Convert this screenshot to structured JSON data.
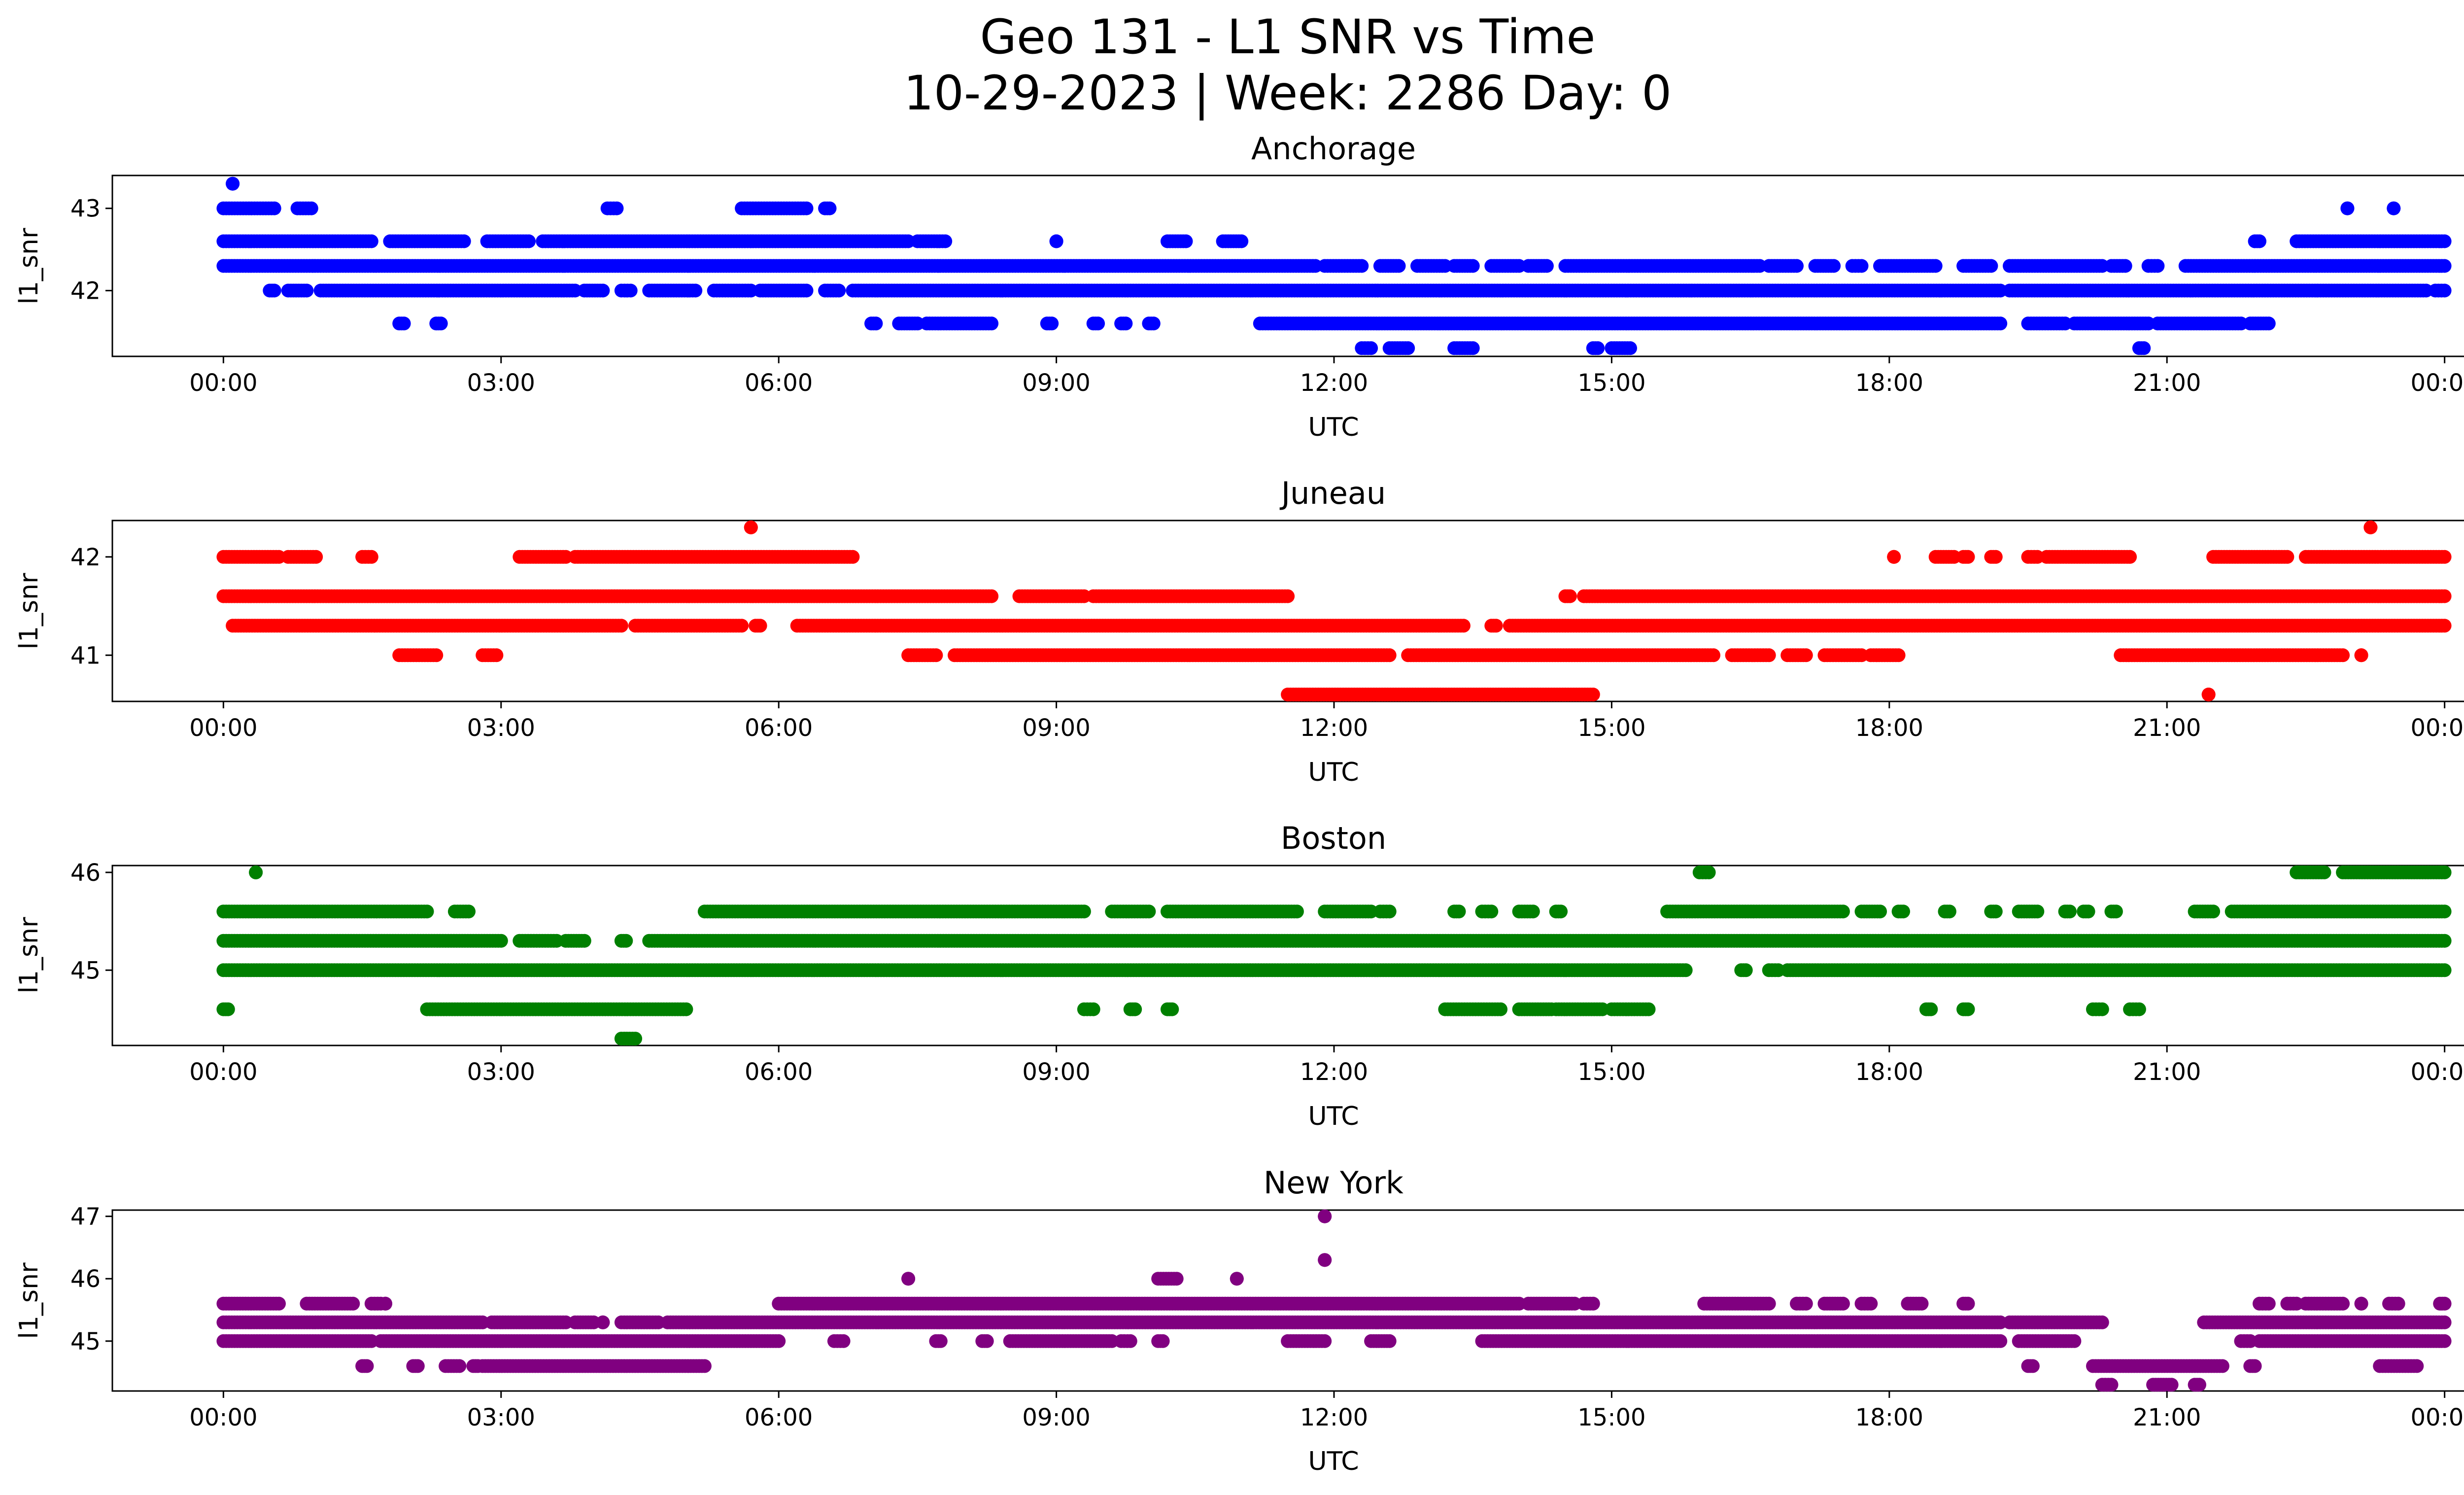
{
  "figure": {
    "title_line1": "Geo 131 - L1 SNR vs Time",
    "title_line2": "10-29-2023 | Week: 2286 Day: 0"
  },
  "chart_data": [
    {
      "type": "scatter",
      "title": "Anchorage",
      "xlabel": "UTC",
      "ylabel": "l1_snr",
      "xlim": [
        -1.2,
        25.2
      ],
      "ylim": [
        41.2,
        43.4
      ],
      "xticks": [
        0,
        3,
        6,
        9,
        12,
        15,
        18,
        21,
        24
      ],
      "xtick_labels": [
        "00:00",
        "03:00",
        "06:00",
        "09:00",
        "12:00",
        "15:00",
        "18:00",
        "21:00",
        "00:00"
      ],
      "yticks": [
        42,
        43
      ],
      "color": "#0000ff",
      "bands": [
        {
          "y": 43.0,
          "segments": [
            [
              0.0,
              0.55
            ],
            [
              0.8,
              0.95
            ],
            [
              4.15,
              4.25
            ],
            [
              5.6,
              6.3
            ],
            [
              6.5,
              6.55
            ],
            [
              22.95,
              22.95
            ],
            [
              23.45,
              23.45
            ]
          ]
        },
        {
          "y": 42.6,
          "segments": [
            [
              0.0,
              1.6
            ],
            [
              1.8,
              2.6
            ],
            [
              2.85,
              3.3
            ],
            [
              3.45,
              7.4
            ],
            [
              7.5,
              7.8
            ],
            [
              9.0,
              9.0
            ],
            [
              10.2,
              10.4
            ],
            [
              10.8,
              11.0
            ],
            [
              21.95,
              22.0
            ],
            [
              22.4,
              24.0
            ]
          ]
        },
        {
          "y": 42.3,
          "segments": [
            [
              0.0,
              11.8
            ],
            [
              11.9,
              12.3
            ],
            [
              12.5,
              12.7
            ],
            [
              12.9,
              13.2
            ],
            [
              13.3,
              13.5
            ],
            [
              13.7,
              14.0
            ],
            [
              14.1,
              14.3
            ],
            [
              14.5,
              16.6
            ],
            [
              16.7,
              17.0
            ],
            [
              17.2,
              17.4
            ],
            [
              17.6,
              17.7
            ],
            [
              17.9,
              18.5
            ],
            [
              18.8,
              19.1
            ],
            [
              19.3,
              20.3
            ],
            [
              20.4,
              20.55
            ],
            [
              20.8,
              20.9
            ],
            [
              21.2,
              24.0
            ]
          ]
        },
        {
          "y": 42.0,
          "segments": [
            [
              0.5,
              0.55
            ],
            [
              0.7,
              0.9
            ],
            [
              1.05,
              3.8
            ],
            [
              3.9,
              4.1
            ],
            [
              4.3,
              4.4
            ],
            [
              4.6,
              5.1
            ],
            [
              5.3,
              5.7
            ],
            [
              5.8,
              6.3
            ],
            [
              6.5,
              6.65
            ],
            [
              6.8,
              19.2
            ],
            [
              19.3,
              23.8
            ],
            [
              23.9,
              24.0
            ]
          ]
        },
        {
          "y": 41.6,
          "segments": [
            [
              1.9,
              1.95
            ],
            [
              2.3,
              2.35
            ],
            [
              7.0,
              7.05
            ],
            [
              7.3,
              7.5
            ],
            [
              7.6,
              8.3
            ],
            [
              8.9,
              8.95
            ],
            [
              9.4,
              9.45
            ],
            [
              9.7,
              9.75
            ],
            [
              10.0,
              10.05
            ],
            [
              11.2,
              19.2
            ],
            [
              19.5,
              19.9
            ],
            [
              20.0,
              20.8
            ],
            [
              20.9,
              21.8
            ],
            [
              21.9,
              22.1
            ]
          ]
        },
        {
          "y": 41.3,
          "segments": [
            [
              12.3,
              12.4
            ],
            [
              12.6,
              12.8
            ],
            [
              13.3,
              13.5
            ],
            [
              14.8,
              14.85
            ],
            [
              15.0,
              15.2
            ],
            [
              20.7,
              20.75
            ]
          ]
        },
        {
          "y": 43.3,
          "segments": [
            [
              0.1,
              0.1
            ]
          ]
        }
      ]
    },
    {
      "type": "scatter",
      "title": "Juneau",
      "xlabel": "UTC",
      "ylabel": "l1_snr",
      "xlim": [
        -1.2,
        25.2
      ],
      "ylim": [
        40.53,
        42.37
      ],
      "xticks": [
        0,
        3,
        6,
        9,
        12,
        15,
        18,
        21,
        24
      ],
      "xtick_labels": [
        "00:00",
        "03:00",
        "06:00",
        "09:00",
        "12:00",
        "15:00",
        "18:00",
        "21:00",
        "00:00"
      ],
      "yticks": [
        41,
        42
      ],
      "color": "#ff0000",
      "bands": [
        {
          "y": 42.0,
          "segments": [
            [
              0.0,
              0.6
            ],
            [
              0.7,
              1.0
            ],
            [
              1.5,
              1.6
            ],
            [
              3.2,
              3.7
            ],
            [
              3.8,
              6.8
            ],
            [
              18.05,
              18.05
            ],
            [
              18.5,
              18.7
            ],
            [
              18.8,
              18.85
            ],
            [
              19.1,
              19.15
            ],
            [
              19.5,
              19.6
            ],
            [
              19.7,
              20.6
            ],
            [
              21.5,
              22.3
            ],
            [
              22.5,
              24.0
            ]
          ]
        },
        {
          "y": 41.6,
          "segments": [
            [
              0.0,
              8.3
            ],
            [
              8.6,
              9.3
            ],
            [
              9.4,
              11.5
            ],
            [
              14.5,
              14.55
            ],
            [
              14.7,
              24.0
            ]
          ]
        },
        {
          "y": 41.3,
          "segments": [
            [
              0.1,
              4.3
            ],
            [
              4.45,
              5.6
            ],
            [
              5.75,
              5.8
            ],
            [
              6.2,
              13.4
            ],
            [
              13.7,
              13.75
            ],
            [
              13.9,
              24.0
            ]
          ]
        },
        {
          "y": 41.0,
          "segments": [
            [
              1.9,
              2.3
            ],
            [
              2.8,
              2.95
            ],
            [
              7.4,
              7.7
            ],
            [
              7.9,
              12.6
            ],
            [
              12.8,
              16.1
            ],
            [
              16.3,
              16.7
            ],
            [
              16.9,
              17.1
            ],
            [
              17.3,
              17.7
            ],
            [
              17.8,
              18.1
            ],
            [
              20.5,
              22.9
            ],
            [
              23.1,
              23.1
            ]
          ]
        },
        {
          "y": 40.6,
          "segments": [
            [
              11.5,
              14.8
            ],
            [
              21.45,
              21.45
            ]
          ]
        },
        {
          "y": 42.3,
          "segments": [
            [
              5.7,
              5.7
            ],
            [
              23.2,
              23.2
            ]
          ]
        }
      ]
    },
    {
      "type": "scatter",
      "title": "Boston",
      "xlabel": "UTC",
      "ylabel": "l1_snr",
      "xlim": [
        -1.2,
        25.2
      ],
      "ylim": [
        44.23,
        46.07
      ],
      "xticks": [
        0,
        3,
        6,
        9,
        12,
        15,
        18,
        21,
        24
      ],
      "xtick_labels": [
        "00:00",
        "03:00",
        "06:00",
        "09:00",
        "12:00",
        "15:00",
        "18:00",
        "21:00",
        "00:00"
      ],
      "yticks": [
        45,
        46
      ],
      "color": "#008000",
      "bands": [
        {
          "y": 46.0,
          "segments": [
            [
              0.35,
              0.35
            ],
            [
              15.95,
              16.05
            ],
            [
              22.4,
              22.7
            ],
            [
              22.9,
              24.0
            ]
          ]
        },
        {
          "y": 45.6,
          "segments": [
            [
              0.0,
              2.2
            ],
            [
              2.5,
              2.65
            ],
            [
              5.2,
              9.3
            ],
            [
              9.6,
              10.0
            ],
            [
              10.2,
              11.6
            ],
            [
              11.9,
              12.4
            ],
            [
              12.5,
              12.6
            ],
            [
              13.3,
              13.35
            ],
            [
              13.6,
              13.7
            ],
            [
              14.0,
              14.15
            ],
            [
              14.4,
              14.45
            ],
            [
              15.6,
              17.5
            ],
            [
              17.7,
              17.9
            ],
            [
              18.1,
              18.15
            ],
            [
              18.6,
              18.65
            ],
            [
              19.1,
              19.15
            ],
            [
              19.4,
              19.6
            ],
            [
              19.9,
              19.95
            ],
            [
              20.1,
              20.15
            ],
            [
              20.4,
              20.45
            ],
            [
              21.3,
              21.5
            ],
            [
              21.7,
              24.0
            ]
          ]
        },
        {
          "y": 45.3,
          "segments": [
            [
              0.0,
              3.0
            ],
            [
              3.2,
              3.6
            ],
            [
              3.7,
              3.9
            ],
            [
              4.3,
              4.35
            ],
            [
              4.6,
              24.0
            ]
          ]
        },
        {
          "y": 45.0,
          "segments": [
            [
              0.0,
              15.8
            ],
            [
              16.4,
              16.45
            ],
            [
              16.7,
              16.8
            ],
            [
              16.9,
              24.0
            ]
          ]
        },
        {
          "y": 44.6,
          "segments": [
            [
              0.0,
              0.05
            ],
            [
              2.2,
              5.0
            ],
            [
              9.3,
              9.4
            ],
            [
              9.8,
              9.85
            ],
            [
              10.2,
              10.25
            ],
            [
              13.2,
              13.8
            ],
            [
              14.0,
              14.35
            ],
            [
              14.4,
              14.9
            ],
            [
              15.0,
              15.4
            ],
            [
              18.4,
              18.45
            ],
            [
              18.8,
              18.85
            ],
            [
              20.2,
              20.3
            ],
            [
              20.6,
              20.7
            ]
          ]
        },
        {
          "y": 44.3,
          "segments": [
            [
              4.3,
              4.45
            ]
          ]
        }
      ]
    },
    {
      "type": "scatter",
      "title": "New York",
      "xlabel": "UTC",
      "ylabel": "l1_snr",
      "xlim": [
        -1.2,
        25.2
      ],
      "ylim": [
        44.2,
        47.1
      ],
      "xticks": [
        0,
        3,
        6,
        9,
        12,
        15,
        18,
        21,
        24
      ],
      "xtick_labels": [
        "00:00",
        "03:00",
        "06:00",
        "09:00",
        "12:00",
        "15:00",
        "18:00",
        "21:00",
        "00:00"
      ],
      "yticks": [
        45,
        46,
        47
      ],
      "color": "#800080",
      "bands": [
        {
          "y": 47.0,
          "segments": [
            [
              11.9,
              11.9
            ]
          ]
        },
        {
          "y": 46.3,
          "segments": [
            [
              11.9,
              11.9
            ]
          ]
        },
        {
          "y": 46.0,
          "segments": [
            [
              7.4,
              7.4
            ],
            [
              10.1,
              10.3
            ],
            [
              10.95,
              10.95
            ]
          ]
        },
        {
          "y": 45.6,
          "segments": [
            [
              0.0,
              0.6
            ],
            [
              0.9,
              1.4
            ],
            [
              1.6,
              1.7
            ],
            [
              1.75,
              1.75
            ],
            [
              6.0,
              14.0
            ],
            [
              14.1,
              14.6
            ],
            [
              14.7,
              14.8
            ],
            [
              16.0,
              16.7
            ],
            [
              17.0,
              17.1
            ],
            [
              17.3,
              17.5
            ],
            [
              17.7,
              17.8
            ],
            [
              18.2,
              18.35
            ],
            [
              18.8,
              18.85
            ],
            [
              22.0,
              22.1
            ],
            [
              22.3,
              22.4
            ],
            [
              22.5,
              22.9
            ],
            [
              23.1,
              23.1
            ],
            [
              23.4,
              23.5
            ],
            [
              23.95,
              24.0
            ]
          ]
        },
        {
          "y": 45.3,
          "segments": [
            [
              0.0,
              2.8
            ],
            [
              2.9,
              3.7
            ],
            [
              3.8,
              4.0
            ],
            [
              4.1,
              4.1
            ],
            [
              4.3,
              4.7
            ],
            [
              4.8,
              19.2
            ],
            [
              19.3,
              20.3
            ],
            [
              21.4,
              24.0
            ]
          ]
        },
        {
          "y": 45.0,
          "segments": [
            [
              0.0,
              1.6
            ],
            [
              1.7,
              6.0
            ],
            [
              6.6,
              6.7
            ],
            [
              7.7,
              7.75
            ],
            [
              8.2,
              8.25
            ],
            [
              8.5,
              9.6
            ],
            [
              9.7,
              9.8
            ],
            [
              10.1,
              10.15
            ],
            [
              11.5,
              11.9
            ],
            [
              12.4,
              12.6
            ],
            [
              13.6,
              19.2
            ],
            [
              19.4,
              20.0
            ],
            [
              21.8,
              21.9
            ],
            [
              22.0,
              24.0
            ]
          ]
        },
        {
          "y": 44.6,
          "segments": [
            [
              1.5,
              1.55
            ],
            [
              2.05,
              2.1
            ],
            [
              2.4,
              2.55
            ],
            [
              2.7,
              2.75
            ],
            [
              2.8,
              5.2
            ],
            [
              19.5,
              19.55
            ],
            [
              20.2,
              21.6
            ],
            [
              21.9,
              21.95
            ],
            [
              23.3,
              23.7
            ]
          ]
        },
        {
          "y": 44.3,
          "segments": [
            [
              20.3,
              20.4
            ],
            [
              20.85,
              21.05
            ],
            [
              21.3,
              21.35
            ]
          ]
        }
      ]
    }
  ]
}
